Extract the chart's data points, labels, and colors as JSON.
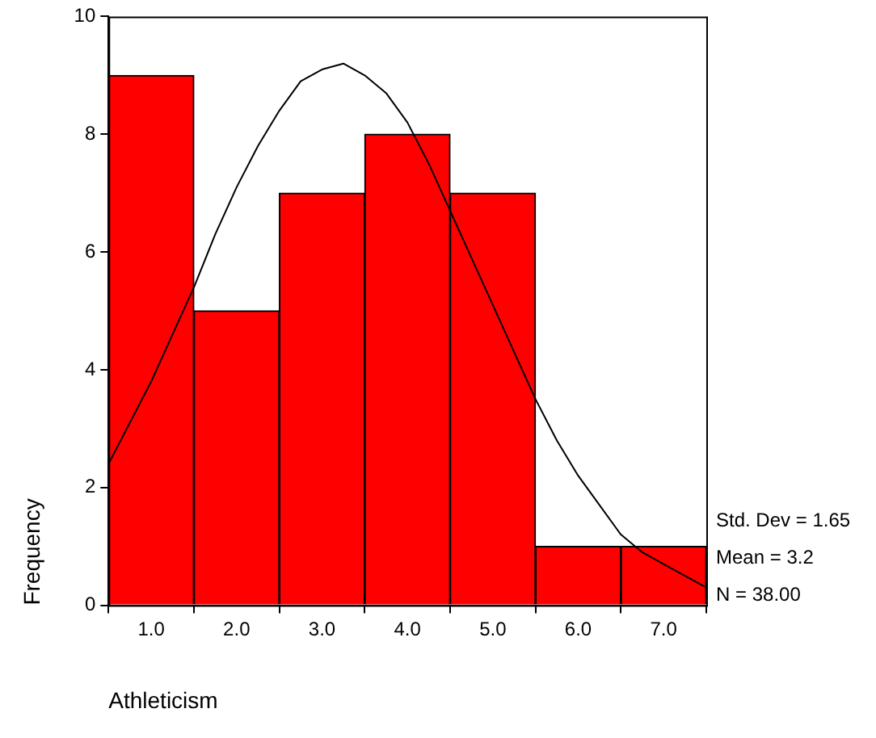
{
  "chart_data": {
    "type": "histogram",
    "xlabel": "Athleticism",
    "ylabel": "Frequency",
    "bins": [
      0.5,
      1.5,
      2.5,
      3.5,
      4.5,
      5.5,
      6.5,
      7.5
    ],
    "values": [
      9,
      5,
      7,
      8,
      7,
      1,
      1
    ],
    "color": "#ff0000",
    "series": [
      {
        "type": "line",
        "color": "#000000",
        "x": [
          0.5,
          0.75,
          1,
          1.25,
          1.5,
          1.75,
          2,
          2.25,
          2.5,
          2.75,
          3,
          3.25,
          3.5,
          3.75,
          4,
          4.25,
          4.5,
          4.75,
          5,
          5.25,
          5.5,
          5.75,
          6,
          6.25,
          6.5,
          6.75,
          7,
          7.25,
          7.5
        ],
        "values": [
          2.4,
          3.1,
          3.8,
          4.6,
          5.4,
          6.3,
          7.1,
          7.8,
          8.4,
          8.9,
          9.1,
          9.2,
          9.0,
          8.7,
          8.2,
          7.5,
          6.7,
          5.9,
          5.1,
          4.3,
          3.5,
          2.8,
          2.2,
          1.7,
          1.2,
          0.9,
          0.7,
          0.5,
          0.3
        ]
      }
    ],
    "marker": "none",
    "line_style": "solid",
    "grid": false,
    "legend": false,
    "xlim": [
      0.5,
      7.5
    ],
    "xticks": [
      {
        "value": 1,
        "label": "1.0"
      },
      {
        "value": 2,
        "label": "2.0"
      },
      {
        "value": 3,
        "label": "3.0"
      },
      {
        "value": 4,
        "label": "4.0"
      },
      {
        "value": 5,
        "label": "5.0"
      },
      {
        "value": 6,
        "label": "6.0"
      },
      {
        "value": 7,
        "label": "7.0"
      }
    ],
    "ylim": [
      0,
      10
    ],
    "yticks": [
      0,
      2,
      4,
      6,
      8,
      10
    ],
    "annotations": [
      "Std. Dev = 1.65",
      "Mean = 3.2",
      "N = 38.00"
    ]
  }
}
